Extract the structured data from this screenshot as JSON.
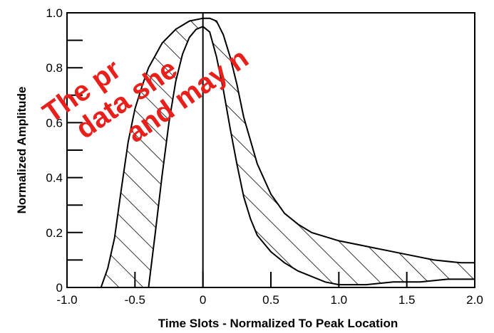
{
  "chart_data": {
    "type": "area",
    "xlabel": "Time Slots - Normalized To Peak Location",
    "ylabel": "Normalized Amplitude",
    "xlim": [
      -1.0,
      2.0
    ],
    "ylim": [
      0,
      1.0
    ],
    "xticks": [
      -1.0,
      -0.5,
      0,
      0.5,
      1.0,
      1.5,
      2.0
    ],
    "xtick_labels": [
      "-1.0",
      "-0.5",
      "0",
      "0.5",
      "1.0",
      "1.5",
      "2.0"
    ],
    "yticks": [
      0,
      0.2,
      0.4,
      0.6,
      0.8,
      1.0
    ],
    "ytick_labels": [
      "0",
      "0.2",
      "0.4",
      "0.6",
      "0.8",
      "1.0"
    ],
    "grid": false,
    "hatch": "diagonal",
    "vertical_reference_x": 0,
    "upper_bound": {
      "x": [
        -0.75,
        -0.7,
        -0.65,
        -0.6,
        -0.55,
        -0.5,
        -0.45,
        -0.4,
        -0.3,
        -0.2,
        -0.1,
        0.0,
        0.05,
        0.1,
        0.15,
        0.2,
        0.25,
        0.3,
        0.4,
        0.5,
        0.6,
        0.7,
        0.8,
        1.0,
        1.2,
        1.5,
        1.7,
        1.9,
        2.0
      ],
      "y": [
        0.0,
        0.07,
        0.18,
        0.36,
        0.53,
        0.65,
        0.73,
        0.8,
        0.89,
        0.94,
        0.97,
        0.98,
        0.98,
        0.97,
        0.92,
        0.84,
        0.74,
        0.62,
        0.45,
        0.34,
        0.27,
        0.23,
        0.2,
        0.17,
        0.15,
        0.12,
        0.1,
        0.09,
        0.09
      ]
    },
    "lower_bound": {
      "x": [
        -0.75,
        -0.7,
        -0.6,
        -0.5,
        -0.4,
        -0.35,
        -0.3,
        -0.25,
        -0.2,
        -0.15,
        -0.1,
        -0.05,
        0.0,
        0.05,
        0.1,
        0.15,
        0.2,
        0.25,
        0.3,
        0.35,
        0.4,
        0.5,
        0.6,
        0.7,
        0.8,
        0.9,
        1.0,
        1.2,
        1.4,
        1.6,
        1.8,
        2.0
      ],
      "y": [
        0.0,
        0.0,
        0.0,
        0.0,
        0.0,
        0.2,
        0.41,
        0.6,
        0.75,
        0.85,
        0.91,
        0.94,
        0.95,
        0.93,
        0.84,
        0.72,
        0.58,
        0.45,
        0.33,
        0.25,
        0.19,
        0.13,
        0.09,
        0.06,
        0.04,
        0.02,
        0.01,
        0.01,
        0.02,
        0.02,
        0.03,
        0.03
      ]
    },
    "colors": {
      "line": "#000000",
      "hatch": "#000000",
      "watermark": "#e8201c"
    }
  },
  "watermark": {
    "line1": "The pr",
    "line2": "data she",
    "line3": "and may n"
  }
}
